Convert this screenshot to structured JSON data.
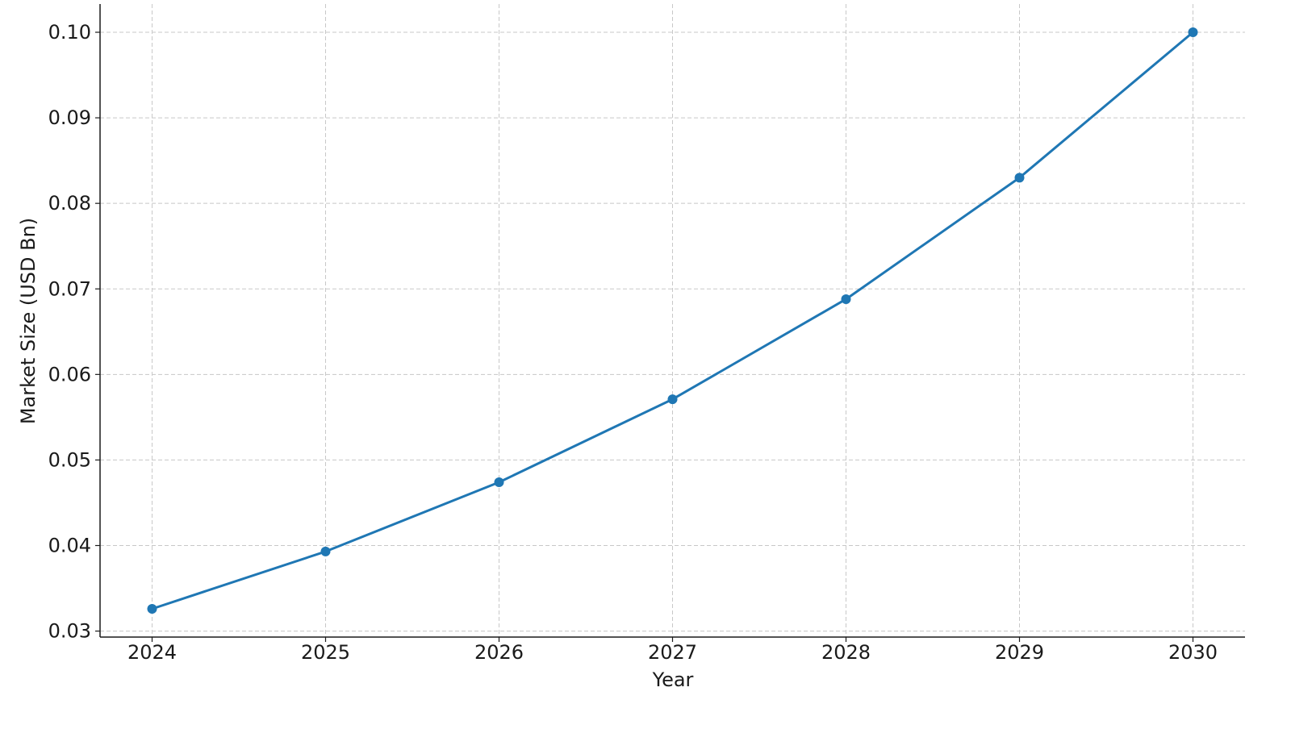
{
  "chart_data": {
    "type": "line",
    "title": "",
    "xlabel": "Year",
    "ylabel": "Market Size (USD Bn)",
    "x": [
      2024,
      2025,
      2026,
      2027,
      2028,
      2029,
      2030
    ],
    "series": [
      {
        "values": [
          0.0326,
          0.0393,
          0.0474,
          0.0571,
          0.0688,
          0.083,
          0.1
        ],
        "color": "#1f77b4",
        "marker": "circle"
      }
    ],
    "xlim": [
      2023.7,
      2030.3
    ],
    "ylim": [
      0.0293,
      0.1033
    ],
    "xticks": [
      2024,
      2025,
      2026,
      2027,
      2028,
      2029,
      2030
    ],
    "xtick_labels": [
      "2024",
      "2025",
      "2026",
      "2027",
      "2028",
      "2029",
      "2030"
    ],
    "yticks": [
      0.03,
      0.04,
      0.05,
      0.06,
      0.07,
      0.08,
      0.09,
      0.1
    ],
    "ytick_labels": [
      "0.03",
      "0.04",
      "0.05",
      "0.06",
      "0.07",
      "0.08",
      "0.09",
      "0.10"
    ],
    "grid": true,
    "grid_style": "dashed",
    "legend": "none"
  }
}
